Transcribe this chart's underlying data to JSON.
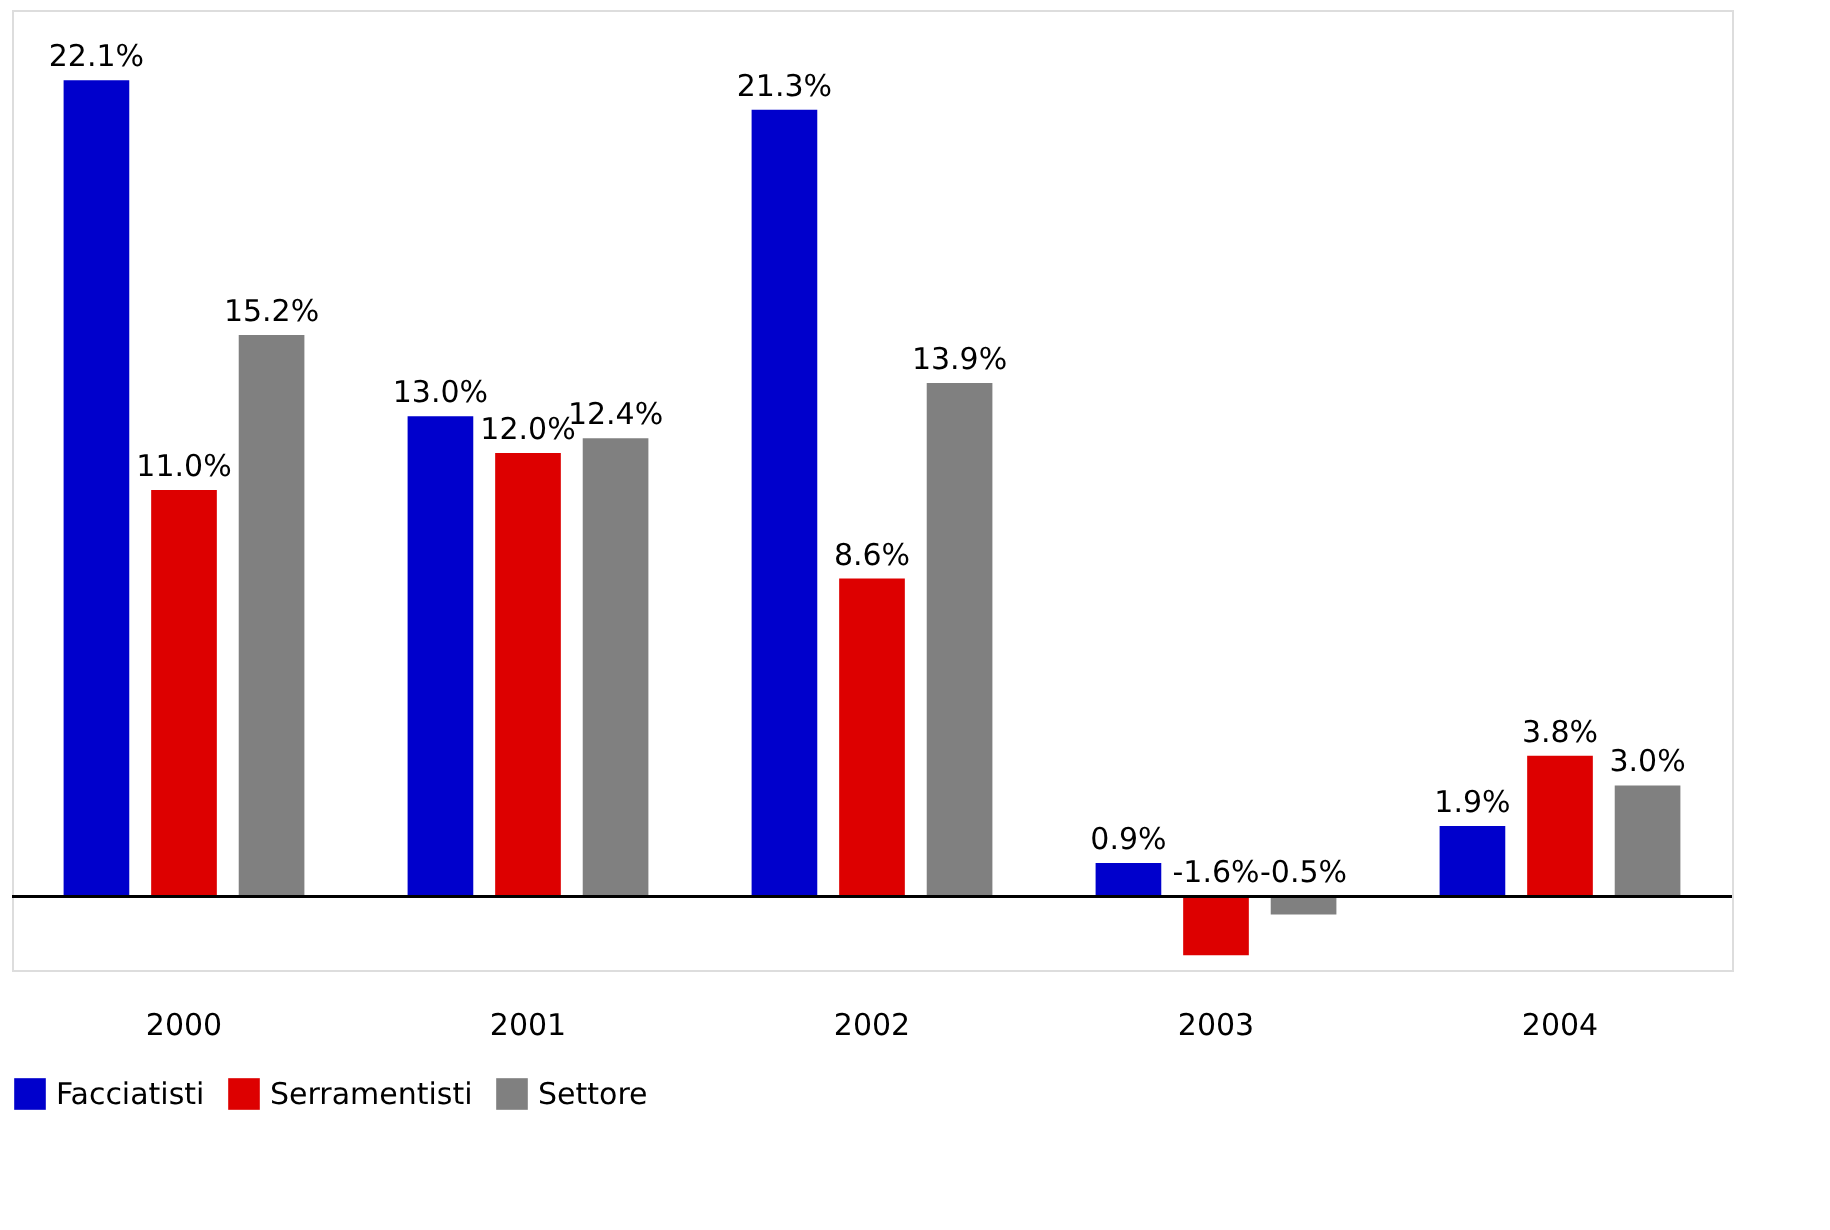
{
  "chart_data": {
    "type": "bar",
    "categories": [
      "2000",
      "2001",
      "2002",
      "2003",
      "2004"
    ],
    "series": [
      {
        "name": "Facciatisti",
        "color": "#0000cc",
        "values": [
          22.1,
          13.0,
          21.3,
          0.9,
          1.9
        ],
        "value_labels": [
          "22.1%",
          "13.0%",
          "21.3%",
          "0.9%",
          "1.9%"
        ]
      },
      {
        "name": "Serramentisti",
        "color": "#dd0000",
        "values": [
          11.0,
          12.0,
          8.6,
          -1.6,
          3.8
        ],
        "value_labels": [
          "11.0%",
          "12.0%",
          "8.6%",
          "-1.6%",
          "3.8%"
        ]
      },
      {
        "name": "Settore",
        "color": "#808080",
        "values": [
          15.2,
          12.4,
          13.9,
          -0.5,
          3.0
        ],
        "value_labels": [
          "15.2%",
          "12.4%",
          "13.9%",
          "-0.5%",
          "3.0%"
        ]
      }
    ],
    "legend": "bottom",
    "grid": false
  }
}
